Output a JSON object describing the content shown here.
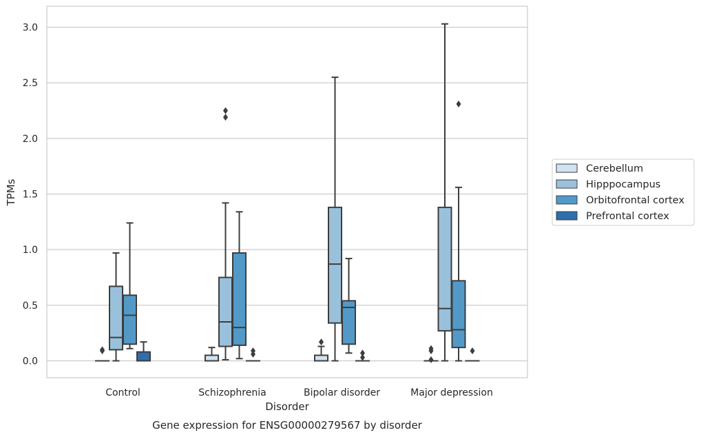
{
  "chart_data": {
    "type": "box",
    "title": "",
    "caption": "Gene expression for ENSG00000279567 by disorder",
    "xlabel": "Disorder",
    "ylabel": "TPMs",
    "ylim": [
      -0.15,
      3.18
    ],
    "yticks": [
      "0.0",
      "0.5",
      "1.0",
      "1.5",
      "2.0",
      "2.5",
      "3.0"
    ],
    "grid": "horizontal",
    "legend_placement": "right",
    "categories": [
      "Control",
      "Schizophrenia",
      "Bipolar disorder",
      "Major depression"
    ],
    "series": [
      {
        "name": "Cerebellum",
        "color": "#d1e2f2",
        "boxes": [
          {
            "q1": 0.0,
            "median": 0.0,
            "q3": 0.0,
            "whisker_low": 0.0,
            "whisker_high": 0.0,
            "outliers": [
              0.09,
              0.1
            ]
          },
          {
            "q1": 0.0,
            "median": 0.0,
            "q3": 0.05,
            "whisker_low": 0.0,
            "whisker_high": 0.12,
            "outliers": []
          },
          {
            "q1": 0.0,
            "median": 0.0,
            "q3": 0.05,
            "whisker_low": 0.0,
            "whisker_high": 0.13,
            "outliers": [
              0.17
            ]
          },
          {
            "q1": 0.0,
            "median": 0.0,
            "q3": 0.0,
            "whisker_low": 0.0,
            "whisker_high": 0.0,
            "outliers": [
              0.01,
              0.09,
              0.11
            ]
          }
        ]
      },
      {
        "name": "Hipppocampus",
        "color": "#9ac1db",
        "boxes": [
          {
            "q1": 0.1,
            "median": 0.21,
            "q3": 0.67,
            "whisker_low": 0.0,
            "whisker_high": 0.97,
            "outliers": []
          },
          {
            "q1": 0.13,
            "median": 0.35,
            "q3": 0.75,
            "whisker_low": 0.01,
            "whisker_high": 1.42,
            "outliers": [
              2.19,
              2.25
            ]
          },
          {
            "q1": 0.34,
            "median": 0.87,
            "q3": 1.38,
            "whisker_low": 0.0,
            "whisker_high": 2.55,
            "outliers": []
          },
          {
            "q1": 0.27,
            "median": 0.47,
            "q3": 1.38,
            "whisker_low": 0.0,
            "whisker_high": 3.03,
            "outliers": []
          }
        ]
      },
      {
        "name": "Orbitofrontal cortex",
        "color": "#5399c7",
        "boxes": [
          {
            "q1": 0.15,
            "median": 0.41,
            "q3": 0.59,
            "whisker_low": 0.11,
            "whisker_high": 1.24,
            "outliers": []
          },
          {
            "q1": 0.14,
            "median": 0.3,
            "q3": 0.97,
            "whisker_low": 0.02,
            "whisker_high": 1.34,
            "outliers": []
          },
          {
            "q1": 0.15,
            "median": 0.48,
            "q3": 0.54,
            "whisker_low": 0.07,
            "whisker_high": 0.92,
            "outliers": []
          },
          {
            "q1": 0.12,
            "median": 0.28,
            "q3": 0.72,
            "whisker_low": 0.0,
            "whisker_high": 1.56,
            "outliers": [
              2.31
            ]
          }
        ]
      },
      {
        "name": "Prefrontal cortex",
        "color": "#2c6fac",
        "boxes": [
          {
            "q1": 0.0,
            "median": 0.0,
            "q3": 0.08,
            "whisker_low": 0.0,
            "whisker_high": 0.17,
            "outliers": []
          },
          {
            "q1": 0.0,
            "median": 0.0,
            "q3": 0.0,
            "whisker_low": 0.0,
            "whisker_high": 0.0,
            "outliers": [
              0.06,
              0.09
            ]
          },
          {
            "q1": 0.0,
            "median": 0.0,
            "q3": 0.0,
            "whisker_low": 0.0,
            "whisker_high": 0.0,
            "outliers": [
              0.03,
              0.07
            ]
          },
          {
            "q1": 0.0,
            "median": 0.0,
            "q3": 0.0,
            "whisker_low": 0.0,
            "whisker_high": 0.0,
            "outliers": [
              0.09
            ]
          }
        ]
      }
    ]
  }
}
